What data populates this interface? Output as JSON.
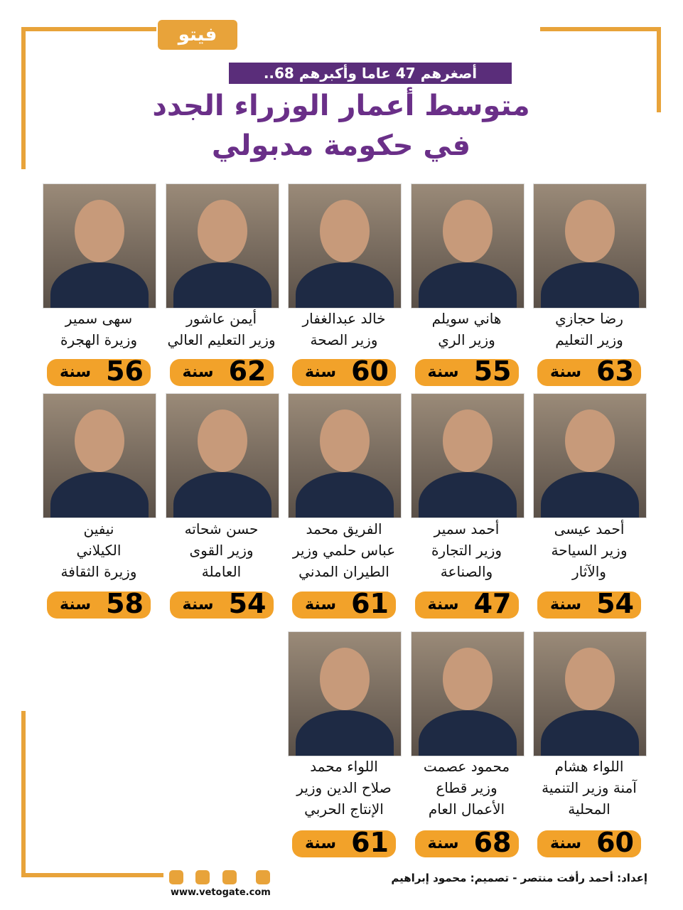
{
  "header": {
    "logo": "فيتو",
    "subtitle": "أصغرهم 47 عاما وأكبرهم 68..",
    "title_lines": [
      "متوسط أعمار الوزراء الجدد",
      "في حكومة مدبولي"
    ]
  },
  "age_unit": "سنة",
  "ministers": [
    {
      "lines": [
        "رضا حجازي",
        "وزير التعليم"
      ],
      "age": 63
    },
    {
      "lines": [
        "هاني سويلم",
        "وزير الري"
      ],
      "age": 55
    },
    {
      "lines": [
        "خالد عبدالغفار",
        "وزير الصحة"
      ],
      "age": 60
    },
    {
      "lines": [
        "أيمن عاشور",
        "وزير التعليم العالي"
      ],
      "age": 62
    },
    {
      "lines": [
        "سهى سمير",
        "وزيرة الهجرة"
      ],
      "age": 56
    },
    {
      "lines": [
        "أحمد عيسى",
        "وزير السياحة",
        "والآثار"
      ],
      "age": 54
    },
    {
      "lines": [
        "أحمد سمير",
        "وزير التجارة",
        "والصناعة"
      ],
      "age": 47
    },
    {
      "lines": [
        "الفريق محمد",
        "عباس حلمي وزير",
        "الطيران المدني"
      ],
      "age": 61
    },
    {
      "lines": [
        "حسن شحاته",
        "وزير القوى",
        "العاملة"
      ],
      "age": 54
    },
    {
      "lines": [
        "نيفين",
        "الكيلاني",
        "وزيرة الثقافة"
      ],
      "age": 58
    },
    {
      "lines": [
        "اللواء هشام",
        "آمنة وزير التنمية",
        "المحلية"
      ],
      "age": 60
    },
    {
      "lines": [
        "محمود عصمت",
        "وزير قطاع",
        "الأعمال العام"
      ],
      "age": 68
    },
    {
      "lines": [
        "اللواء محمد",
        "صلاح الدين وزير",
        "الإنتاج الحربي"
      ],
      "age": 61
    }
  ],
  "footer": {
    "credits": "إعداد: أحمد رأفت منتصر  -  تصميم: محمود إبراهيم",
    "website": "www.vetogate.com"
  }
}
